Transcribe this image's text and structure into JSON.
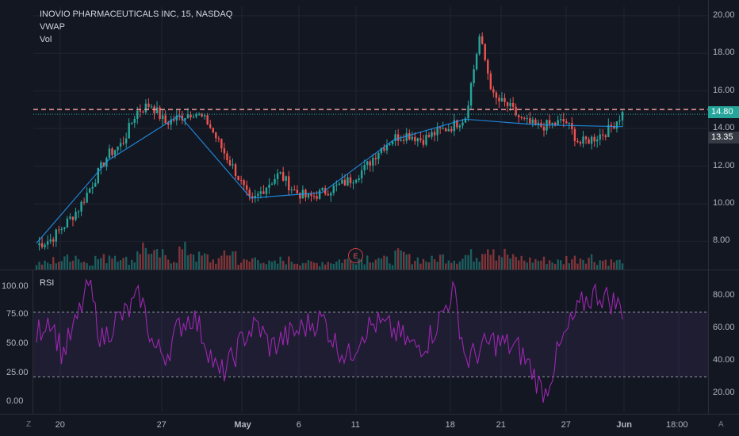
{
  "legend": {
    "title": "INOVIO PHARMACEUTICALS INC, 15, NASDAQ",
    "vwap": "VWAP",
    "vol": "Vol",
    "rsi": "RSI"
  },
  "price_axis": [
    "20.00",
    "18.00",
    "16.00",
    "14.00",
    "12.00",
    "10.00",
    "8.00"
  ],
  "rsi_axis_right": [
    "80.00",
    "60.00",
    "40.00",
    "20.00"
  ],
  "rsi_axis_left": [
    "100.00",
    "75.00",
    "50.00",
    "25.00",
    "0.00"
  ],
  "time_axis": [
    "20",
    "27",
    "May",
    "6",
    "11",
    "18",
    "21",
    "27",
    "Jun",
    "18:00"
  ],
  "price_tags": {
    "last": "14.80",
    "other": "13.35"
  },
  "earnings_marker": "E",
  "corner_left": "Z",
  "corner_right": "A",
  "colors": {
    "background": "#131722",
    "up": "#26a69a",
    "down": "#ef5350",
    "vwap": "#2196f3",
    "rsi": "#9c27b0",
    "dashed_level": "#ef9a9a"
  },
  "chart_data": [
    {
      "type": "candlestick",
      "title": "INOVIO PHARMACEUTICALS INC, 15, NASDAQ",
      "x_ticks": [
        "20",
        "27",
        "May",
        "6",
        "11",
        "18",
        "21",
        "27",
        "Jun",
        "18:00"
      ],
      "y_ticks": [
        8,
        10,
        12,
        14,
        16,
        18,
        20
      ],
      "ylim": [
        6.5,
        20.5
      ],
      "close_path": [
        [
          0,
          7.8
        ],
        [
          1,
          8.1
        ],
        [
          2,
          8.9
        ],
        [
          3,
          9.8
        ],
        [
          4,
          11.2
        ],
        [
          5,
          12.6
        ],
        [
          6,
          13.2
        ],
        [
          7,
          14.9
        ],
        [
          8,
          15.3
        ],
        [
          9,
          14.3
        ],
        [
          10,
          14.6
        ],
        [
          11,
          14.9
        ],
        [
          12,
          14.3
        ],
        [
          13,
          12.9
        ],
        [
          14,
          11.6
        ],
        [
          15,
          10.0
        ],
        [
          16,
          10.9
        ],
        [
          17,
          11.6
        ],
        [
          18,
          10.7
        ],
        [
          19,
          10.3
        ],
        [
          20,
          10.6
        ],
        [
          21,
          10.9
        ],
        [
          22,
          11.3
        ],
        [
          23,
          11.9
        ],
        [
          24,
          12.9
        ],
        [
          25,
          13.5
        ],
        [
          26,
          13.7
        ],
        [
          27,
          13.4
        ],
        [
          28,
          13.8
        ],
        [
          29,
          14.1
        ],
        [
          30,
          14.6
        ],
        [
          31,
          18.9
        ],
        [
          32,
          15.6
        ],
        [
          33,
          15.2
        ],
        [
          34,
          14.4
        ],
        [
          35,
          14.1
        ],
        [
          36,
          14.2
        ],
        [
          37,
          14.4
        ],
        [
          38,
          13.2
        ],
        [
          39,
          13.5
        ],
        [
          40,
          13.9
        ],
        [
          41,
          14.8
        ]
      ],
      "series": [
        {
          "name": "VWAP",
          "x": [
            0,
            5,
            10,
            15,
            20,
            25,
            30,
            35,
            41
          ],
          "values": [
            7.9,
            12.3,
            14.7,
            10.3,
            10.6,
            13.4,
            14.5,
            14.2,
            14.1
          ]
        }
      ],
      "volume": [
        4,
        6,
        9,
        5,
        7,
        10,
        6,
        14,
        9,
        7,
        12,
        8,
        6,
        11,
        5,
        7,
        4,
        6,
        5,
        4,
        5,
        6,
        7,
        8,
        6,
        9,
        7,
        6,
        8,
        7,
        9,
        16,
        10,
        7,
        6,
        6,
        5,
        7,
        8,
        6,
        5,
        7
      ],
      "levels": [
        14.8
      ],
      "last_price": 14.8,
      "other_price_tag": 13.35
    },
    {
      "type": "line",
      "title": "RSI",
      "x_ticks": [
        "20",
        "27",
        "May",
        "6",
        "11",
        "18",
        "21",
        "27",
        "Jun",
        "18:00"
      ],
      "y_ticks": [
        20,
        40,
        60,
        80
      ],
      "ylim": [
        12,
        92
      ],
      "levels": [
        30,
        70
      ],
      "series": [
        {
          "name": "RSI",
          "values": [
            56,
            68,
            44,
            62,
            88,
            52,
            64,
            70,
            80,
            48,
            44,
            62,
            68,
            52,
            30,
            40,
            56,
            62,
            48,
            54,
            58,
            63,
            66,
            50,
            42,
            58,
            63,
            60,
            55,
            48,
            52,
            66,
            84,
            40,
            46,
            52,
            50,
            47,
            35,
            18,
            44,
            62,
            76,
            82,
            78,
            72
          ]
        }
      ]
    }
  ]
}
